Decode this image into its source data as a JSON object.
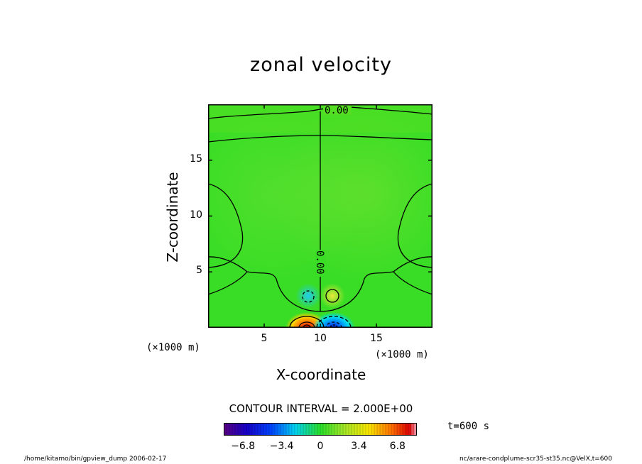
{
  "chart_data": {
    "type": "heatmap",
    "title": "zonal velocity",
    "xlabel": "X-coordinate",
    "ylabel": "Z-coordinate",
    "x_unit_label": "(×1000 m)",
    "y_unit_label": "(×1000 m)",
    "xlim": [
      0,
      20
    ],
    "ylim": [
      0,
      20
    ],
    "x_ticks": [
      5,
      10,
      15
    ],
    "y_ticks": [
      5,
      10,
      15
    ],
    "x_tick_labels": [
      "5",
      "10",
      "15"
    ],
    "y_tick_labels": [
      "5",
      "10",
      "15"
    ],
    "contour_labels": [
      "0.00",
      "0.00"
    ],
    "contour_interval_text": "CONTOUR INTERVAL = 2.000E+00",
    "time_text": "t=600 s",
    "colorbar": {
      "range": [
        -8.5,
        8.5
      ],
      "tick_values": [
        -6.8,
        -3.4,
        0,
        3.4,
        6.8
      ],
      "tick_labels": [
        "−6.8",
        "−3.4",
        "0",
        "3.4",
        "6.8"
      ]
    },
    "features": [
      {
        "x": 8.8,
        "z": 0.2,
        "value": 8.0
      },
      {
        "x": 11.2,
        "z": 0.2,
        "value": -8.0
      },
      {
        "x": 8.9,
        "z": 2.8,
        "value": -2.5
      },
      {
        "x": 11.1,
        "z": 2.8,
        "value": 2.5
      }
    ]
  },
  "footer": {
    "left": "/home/kitamo/bin/gpview_dump  2006-02-17",
    "right": "nc/arare-condplume-scr35-st35.nc@VelX,t=600"
  },
  "colors": {
    "background": "#ffffff",
    "field_zero": "#33dd22",
    "positive": "#ee2200",
    "negative": "#0011ee",
    "contour": "#000000"
  }
}
